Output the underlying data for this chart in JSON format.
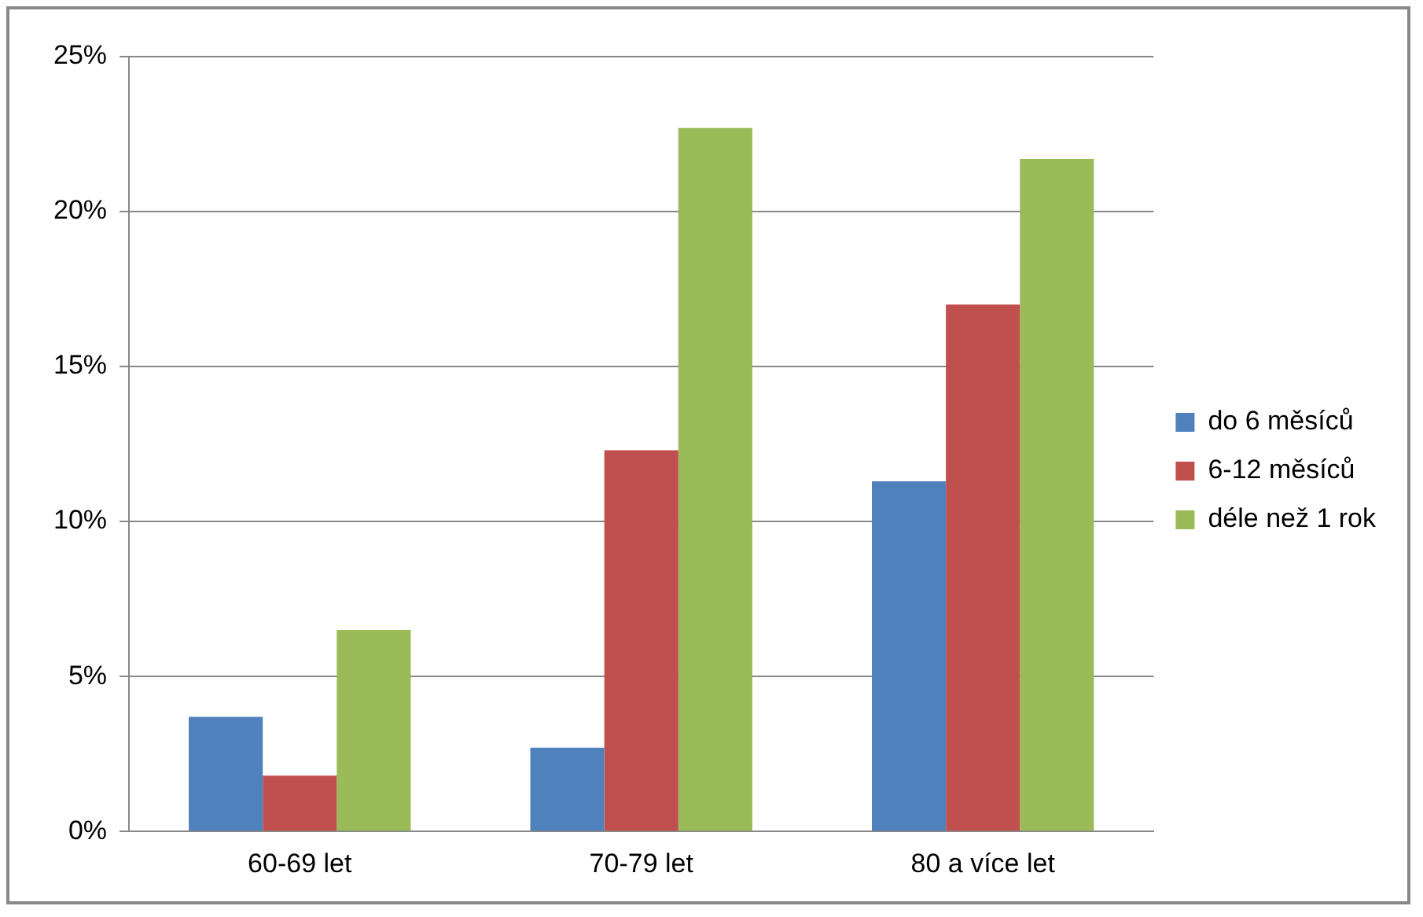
{
  "chart_data": {
    "type": "bar",
    "categories": [
      "60-69 let",
      "70-79 let",
      "80 a více let"
    ],
    "series": [
      {
        "name": "do 6 měsíců",
        "color": "#4f81bd",
        "values": [
          3.7,
          2.7,
          11.3
        ]
      },
      {
        "name": "6-12 měsíců",
        "color": "#c0504d",
        "values": [
          1.8,
          12.3,
          17.0
        ]
      },
      {
        "name": "déle než 1 rok",
        "color": "#9bbb59",
        "values": [
          6.5,
          22.7,
          21.7
        ]
      }
    ],
    "ylim": [
      0,
      25
    ],
    "yticks": [
      {
        "value": 0,
        "label": "0%"
      },
      {
        "value": 5,
        "label": "5%"
      },
      {
        "value": 10,
        "label": "10%"
      },
      {
        "value": 15,
        "label": "15%"
      },
      {
        "value": 20,
        "label": "20%"
      },
      {
        "value": 25,
        "label": "25%"
      }
    ],
    "grid": "y",
    "legend": "right"
  }
}
